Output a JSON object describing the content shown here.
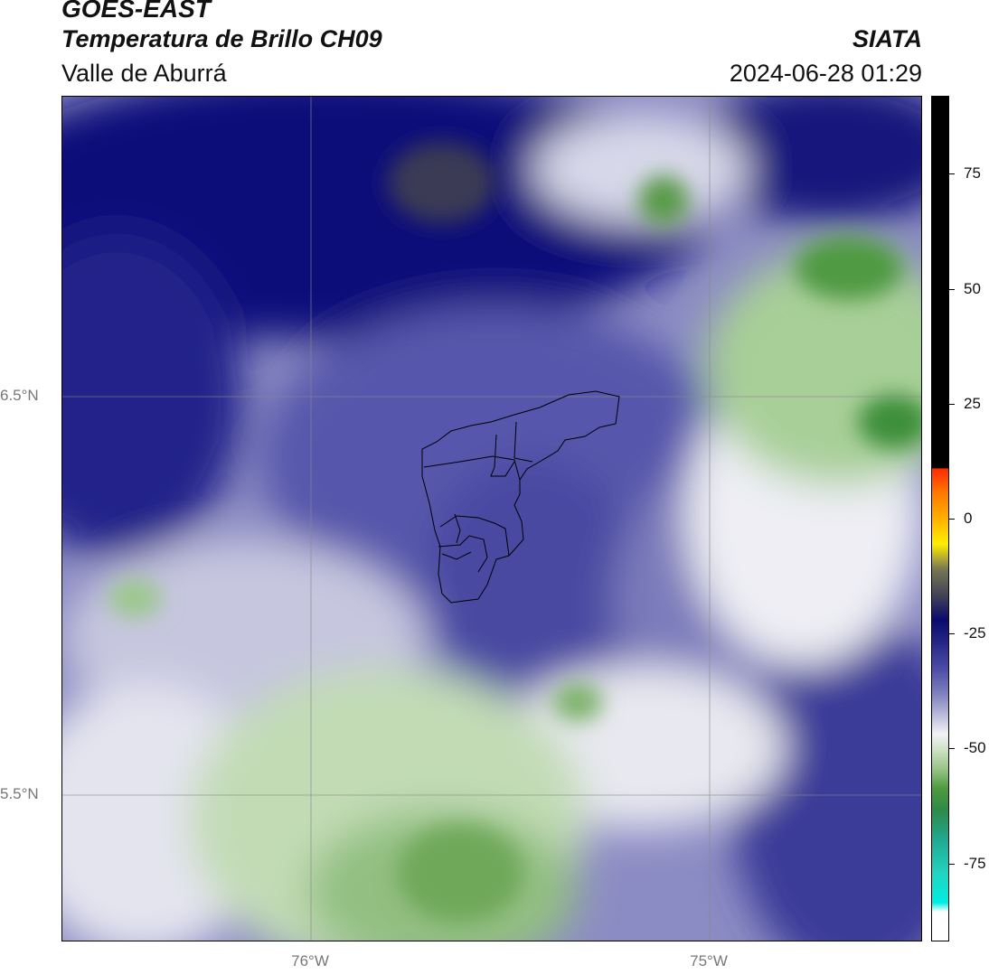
{
  "header": {
    "org": "GOES-EAST",
    "title": "Temperatura de Brillo CH09",
    "subtitle": "Valle de Aburrá",
    "brand": "SIATA",
    "timestamp": "2024-06-28 01:29"
  },
  "map": {
    "lat_labels": [
      "6.5°N",
      "5.5°N"
    ],
    "lon_labels": [
      "76°W",
      "75°W"
    ],
    "field_colors": {
      "deep_blue": "#0a0a6e",
      "mid_blue": "#4f4fa8",
      "pale_blue": "#c0c0dc",
      "white": "#f4f4f8",
      "pale_green": "#d7e6cf",
      "mid_green": "#9cc78c",
      "dark_green": "#3f8f3a"
    }
  },
  "colorbar": {
    "tick_labels": [
      "75",
      "50",
      "25",
      "0",
      "-25",
      "-50",
      "-75"
    ],
    "range": [
      -92,
      92
    ]
  }
}
